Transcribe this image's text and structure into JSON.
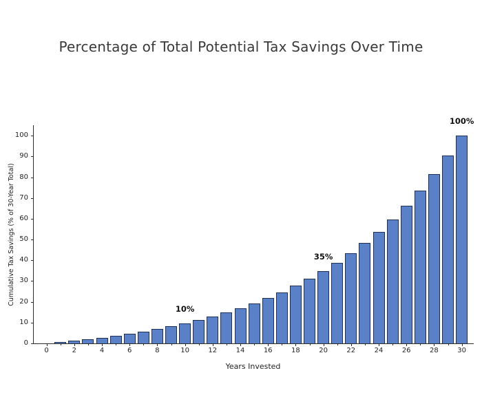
{
  "chart_data": {
    "type": "bar",
    "title": "Percentage of Total Potential Tax Savings Over Time",
    "xlabel": "Years Invested",
    "ylabel": "Cumulative Tax Savings (% of 30-Year Total)",
    "x": [
      1,
      2,
      3,
      4,
      5,
      6,
      7,
      8,
      9,
      10,
      11,
      12,
      13,
      14,
      15,
      16,
      17,
      18,
      19,
      20,
      21,
      22,
      23,
      24,
      25,
      26,
      27,
      28,
      29,
      30
    ],
    "values": [
      0.6,
      1.3,
      2.0,
      2.8,
      3.7,
      4.7,
      5.8,
      7.0,
      8.3,
      9.7,
      11.3,
      13.0,
      14.9,
      17.0,
      19.3,
      21.9,
      24.6,
      27.7,
      31.1,
      34.8,
      38.9,
      43.4,
      48.4,
      53.8,
      59.8,
      66.4,
      73.6,
      81.6,
      90.4,
      100.0
    ],
    "xtick_labels": [
      0,
      2,
      4,
      6,
      8,
      10,
      12,
      14,
      16,
      18,
      20,
      22,
      24,
      26,
      28,
      30
    ],
    "xticks_minor": [
      1,
      3,
      5,
      7,
      9,
      11,
      13,
      15,
      17,
      19,
      21,
      23,
      25,
      27,
      29
    ],
    "yticks": [
      0,
      10,
      20,
      30,
      40,
      50,
      60,
      70,
      80,
      90,
      100
    ],
    "xlim": [
      -0.93,
      30.87
    ],
    "ylim": [
      0,
      105
    ],
    "grid": false,
    "legend": null,
    "annotations": [
      {
        "x": 10,
        "label": "10%"
      },
      {
        "x": 20,
        "label": "35%"
      },
      {
        "x": 30,
        "label": "100%"
      }
    ],
    "colors": {
      "bar_fill": "#5A81C7",
      "bar_edge": "#1F2F55",
      "axis": "#2B2B2B",
      "title_text": "#3A3A3A",
      "background": "#FFFFFF"
    }
  }
}
